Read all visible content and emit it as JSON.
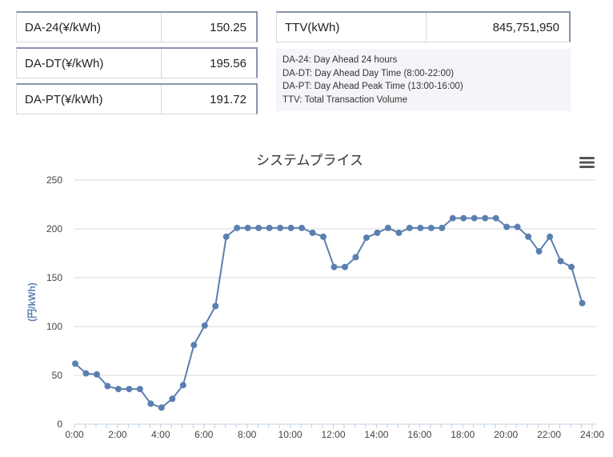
{
  "stats": {
    "da24": {
      "label": "DA-24(¥/kWh)",
      "value": "150.25"
    },
    "dadt": {
      "label": "DA-DT(¥/kWh)",
      "value": "195.56"
    },
    "dapt": {
      "label": "DA-PT(¥/kWh)",
      "value": "191.72"
    },
    "ttv": {
      "label": "TTV(kWh)",
      "value": "845,751,950"
    }
  },
  "notes": [
    "DA-24: Day Ahead 24 hours",
    "DA-DT: Day Ahead Day Time (8:00-22:00)",
    "DA-PT: Day Ahead Peak Time (13:00-16:00)",
    "TTV: Total Transaction Volume"
  ],
  "menu_icon": "hamburger-menu-icon",
  "colors": {
    "line": "#5a7fb0",
    "title": "#333333",
    "axis_label": "#5a7fb0",
    "grid": "#d9d9d9"
  },
  "chart_data": {
    "type": "line",
    "title": "システムプライス",
    "ylabel": "(円/kWh)",
    "xlabel": "",
    "ylim": [
      0,
      250
    ],
    "y_ticks": [
      0,
      50,
      100,
      150,
      200,
      250
    ],
    "x_tick_labels": [
      "0:00",
      "2:00",
      "4:00",
      "6:00",
      "8:00",
      "10:00",
      "12:00",
      "14:00",
      "16:00",
      "18:00",
      "20:00",
      "22:00",
      "24:00"
    ],
    "grid": true,
    "series": [
      {
        "values": [
          62,
          52,
          51,
          39,
          36,
          36,
          36,
          21,
          17,
          26,
          40,
          81,
          101,
          121,
          192,
          201,
          201,
          201,
          201,
          201,
          201,
          201,
          196,
          192,
          161,
          161,
          171,
          191,
          196,
          201,
          196,
          201,
          201,
          201,
          201,
          211,
          211,
          211,
          211,
          211,
          202,
          202,
          192,
          177,
          192,
          167,
          161,
          124
        ]
      }
    ]
  }
}
